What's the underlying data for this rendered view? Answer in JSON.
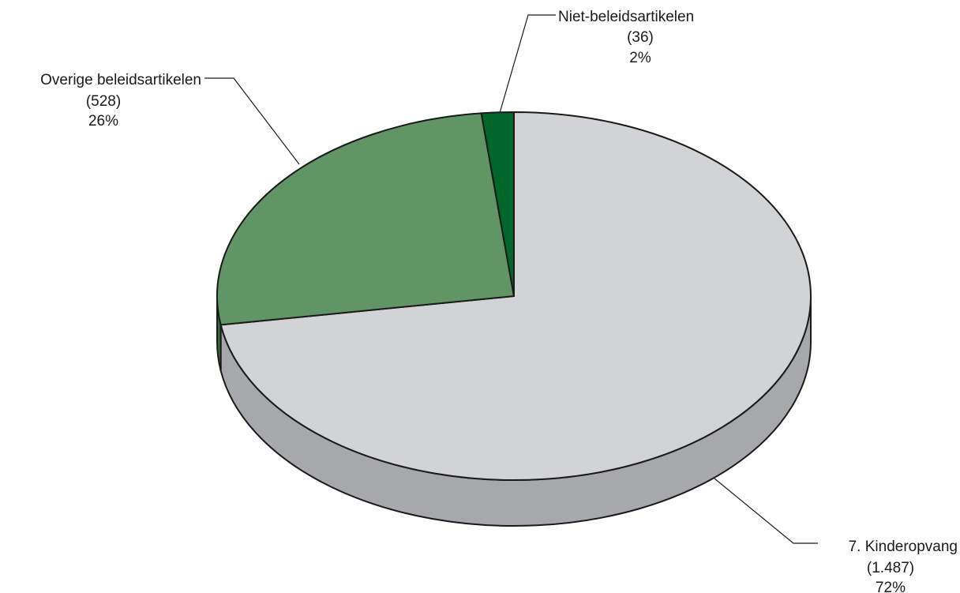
{
  "chart_data": {
    "type": "pie",
    "title": "",
    "slices": [
      {
        "label": "7. Kinderopvang",
        "value": 1487,
        "value_text": "(1.487)",
        "percent_text": "72%",
        "color": "#d2d3d5",
        "side_color": "#a7a8ab"
      },
      {
        "label": "Overige beleidsartikelen",
        "value": 528,
        "value_text": "(528)",
        "percent_text": "26%",
        "color": "#629565",
        "side_color": "#3f6a42"
      },
      {
        "label": "Niet-beleidsartikelen",
        "value": 36,
        "value_text": "(36)",
        "percent_text": "2%",
        "color": "#006629",
        "side_color": "#00461c"
      }
    ],
    "start_angle": "12 o'clock",
    "direction": "clockwise",
    "style": "3d-pie"
  }
}
